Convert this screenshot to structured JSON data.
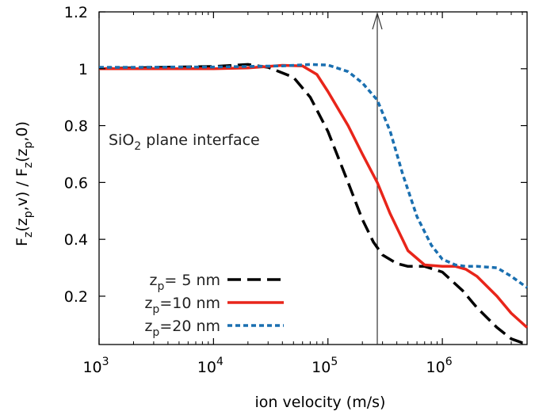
{
  "chart_data": {
    "type": "line",
    "xlabel": "ion velocity  (m/s)",
    "ylabel": {
      "parts": [
        {
          "t": "F",
          "sub": false
        },
        {
          "t": "z",
          "sub": true
        },
        {
          "t": "(z",
          "sub": false
        },
        {
          "t": "p",
          "sub": true
        },
        {
          "t": ",v) / F",
          "sub": false
        },
        {
          "t": "z",
          "sub": true
        },
        {
          "t": "(z",
          "sub": false
        },
        {
          "t": "p",
          "sub": true
        },
        {
          "t": ",0)",
          "sub": false
        }
      ]
    },
    "annotation": {
      "pre": "SiO",
      "sub": "2",
      "post": " plane interface"
    },
    "x_scale": "log",
    "xlim": [
      1000,
      5500000
    ],
    "ylim": [
      0.03,
      1.2
    ],
    "x_ticks": [
      {
        "value": 1000,
        "base": "10",
        "exp": "3"
      },
      {
        "value": 10000,
        "base": "10",
        "exp": "4"
      },
      {
        "value": 100000,
        "base": "10",
        "exp": "5"
      },
      {
        "value": 1000000,
        "base": "10",
        "exp": "6"
      }
    ],
    "y_ticks": [
      {
        "value": 0.2,
        "label": "0.2"
      },
      {
        "value": 0.4,
        "label": "0.4"
      },
      {
        "value": 0.6,
        "label": "0.6"
      },
      {
        "value": 0.8,
        "label": "0.8"
      },
      {
        "value": 1.0,
        "label": "1"
      },
      {
        "value": 1.2,
        "label": "1.2"
      }
    ],
    "vertical_marker": {
      "x": 270000
    },
    "legend_position": "bottom-left",
    "grid": false,
    "series": [
      {
        "legend_pre": "z",
        "legend_sub": "p",
        "legend_post": "= 5 nm",
        "color": "#000000",
        "dash": "dashed",
        "x": [
          1000,
          2000,
          5000,
          10000,
          20000,
          30000,
          50000,
          70000,
          100000,
          150000,
          200000,
          250000,
          300000,
          400000,
          500000,
          700000,
          1000000,
          1500000,
          2000000,
          3000000,
          4000000,
          5500000
        ],
        "y": [
          1.0,
          1.003,
          1.006,
          1.008,
          1.015,
          1.005,
          0.97,
          0.9,
          0.78,
          0.6,
          0.47,
          0.39,
          0.345,
          0.315,
          0.305,
          0.305,
          0.285,
          0.22,
          0.16,
          0.09,
          0.05,
          0.03
        ]
      },
      {
        "legend_pre": "z",
        "legend_sub": "p",
        "legend_post": "=10 nm",
        "color": "#e8251a",
        "dash": "solid",
        "x": [
          1000,
          2000,
          5000,
          10000,
          20000,
          30000,
          40000,
          60000,
          80000,
          100000,
          150000,
          200000,
          270000,
          350000,
          500000,
          700000,
          1000000,
          1300000,
          1600000,
          2000000,
          3000000,
          4000000,
          5500000
        ],
        "y": [
          1.0,
          1.0,
          1.0,
          1.0,
          1.003,
          1.008,
          1.012,
          1.01,
          0.98,
          0.92,
          0.8,
          0.7,
          0.6,
          0.49,
          0.36,
          0.31,
          0.305,
          0.305,
          0.295,
          0.27,
          0.2,
          0.14,
          0.09
        ]
      },
      {
        "legend_pre": "z",
        "legend_sub": "p",
        "legend_post": "=20 nm",
        "color": "#1a6fb0",
        "dash": "dotted",
        "x": [
          1000,
          2000,
          5000,
          10000,
          20000,
          40000,
          70000,
          100000,
          150000,
          200000,
          270000,
          350000,
          450000,
          600000,
          800000,
          1000000,
          1300000,
          1600000,
          2000000,
          3000000,
          4000000,
          5500000
        ],
        "y": [
          1.005,
          1.005,
          1.006,
          1.006,
          1.008,
          1.01,
          1.015,
          1.013,
          0.99,
          0.95,
          0.89,
          0.78,
          0.63,
          0.48,
          0.38,
          0.33,
          0.31,
          0.305,
          0.305,
          0.3,
          0.27,
          0.23
        ]
      }
    ]
  }
}
